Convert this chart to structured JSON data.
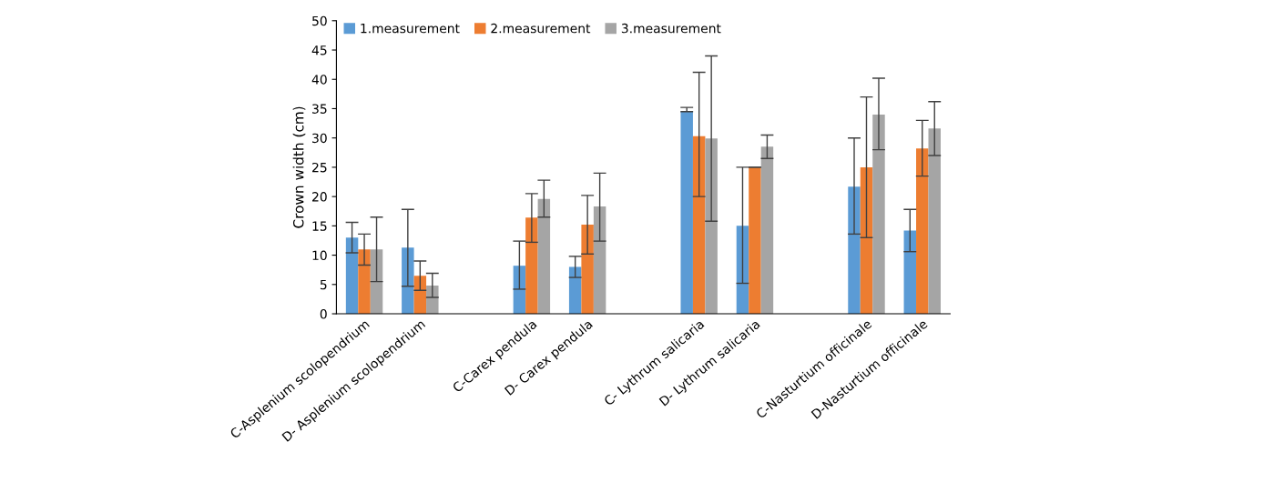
{
  "chart_data": {
    "type": "bar",
    "ylabel": "Crown width (cm)",
    "categories": [
      "C-Asplenium scolopendrium",
      "D- Asplenium scolopendrium",
      null,
      "C-Carex pendula",
      "D- Carex pendula",
      null,
      "C- Lythrum salicaria",
      "D- Lythrum salicaria",
      null,
      "C-Nasturtium officinale",
      "D-Nasturtium officinale"
    ],
    "series": [
      {
        "name": "1.measurement",
        "color": "#5b9bd5",
        "values": [
          13,
          11.3,
          null,
          8.2,
          8,
          null,
          34.5,
          15,
          null,
          21.7,
          14.2
        ],
        "errors": [
          [
            10.4,
            15.6
          ],
          [
            4.7,
            17.8
          ],
          null,
          [
            4.2,
            12.4
          ],
          [
            6.2,
            9.8
          ],
          null,
          [
            34.5,
            35.2
          ],
          [
            5.2,
            25
          ],
          null,
          [
            13.6,
            30
          ],
          [
            10.6,
            17.8
          ]
        ]
      },
      {
        "name": "2.measurement",
        "color": "#ed7d31",
        "values": [
          11,
          6.5,
          null,
          16.4,
          15.2,
          null,
          30.3,
          25,
          null,
          25,
          28.2
        ],
        "errors": [
          [
            8.3,
            13.6
          ],
          [
            4,
            9
          ],
          null,
          [
            12.2,
            20.5
          ],
          [
            10.2,
            20.2
          ],
          null,
          [
            20,
            41.2
          ],
          [
            25,
            25
          ],
          null,
          [
            13,
            37
          ],
          [
            23.5,
            33
          ]
        ]
      },
      {
        "name": "3.measurement",
        "color": "#a5a5a5",
        "values": [
          11,
          4.8,
          null,
          19.6,
          18.3,
          null,
          29.9,
          28.5,
          null,
          34,
          31.6
        ],
        "errors": [
          [
            5.5,
            16.5
          ],
          [
            2.8,
            6.9
          ],
          null,
          [
            16.5,
            22.8
          ],
          [
            12.4,
            24
          ],
          null,
          [
            15.8,
            44
          ],
          [
            26.5,
            30.5
          ],
          null,
          [
            28,
            40.2
          ],
          [
            27,
            36.2
          ]
        ]
      }
    ],
    "ylim": [
      0,
      50
    ],
    "yticks": [
      0,
      5,
      10,
      15,
      20,
      25,
      30,
      35,
      40,
      45,
      50
    ],
    "grid": false,
    "legend": "top"
  }
}
